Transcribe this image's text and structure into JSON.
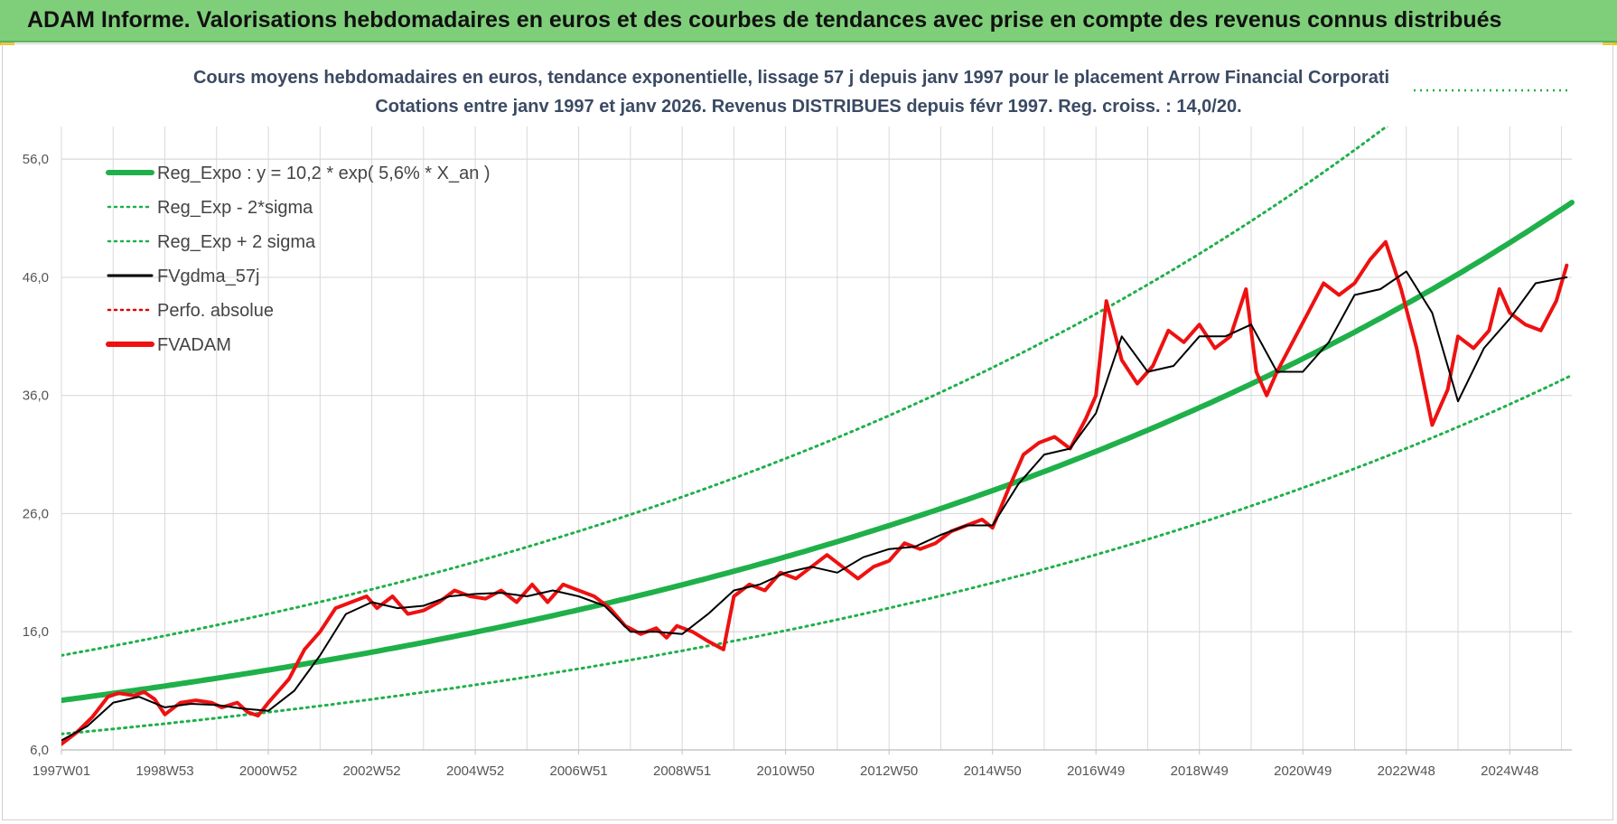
{
  "header": {
    "banner_title": "ADAM Informe. Valorisations hebdomadaires en euros et des courbes de tendances avec prise en compte des revenus connus distribués"
  },
  "colors": {
    "banner": "#7fcf7a",
    "reg_expo": "#1fb04a",
    "sigma": "#1fb04a",
    "fvgdma": "#000000",
    "perfo": "#e00000",
    "fvadam": "#ee1111",
    "grid": "#d9d9d9"
  },
  "chart_data": {
    "type": "line",
    "title": "Cours moyens hebdomadaires en euros, tendance exponentielle, lissage 57 j depuis janv 1997 pour le placement Arrow Financial Corporati",
    "subtitle": "Cotations entre janv 1997 et janv 2026. Revenus DISTRIBUES depuis févr 1997. Reg. croiss. : 14,0/20.",
    "xlabel": "",
    "ylabel": "",
    "ylim": [
      6,
      58
    ],
    "xlim": [
      1997.0,
      2026.2
    ],
    "y_ticks": [
      6,
      16,
      26,
      36,
      46,
      56
    ],
    "y_tick_labels": [
      "6,0",
      "16,0",
      "26,0",
      "36,0",
      "46,0",
      "56,0"
    ],
    "x_ticks": [
      1997.0,
      1999.0,
      2001.0,
      2003.0,
      2005.0,
      2007.0,
      2009.0,
      2011.0,
      2013.0,
      2015.0,
      2017.0,
      2019.0,
      2021.0,
      2023.0,
      2025.0
    ],
    "x_tick_labels": [
      "1997W01",
      "1998W53",
      "2000W52",
      "2002W52",
      "2004W52",
      "2006W51",
      "2008W51",
      "2010W50",
      "2012W50",
      "2014W50",
      "2016W49",
      "2018W49",
      "2020W49",
      "2022W48",
      "2024W48"
    ],
    "grid": true,
    "legend_position": "top-left",
    "legend": [
      {
        "label": "Reg_Expo : y = 10,2 * exp( 5,6% *  X_an )",
        "style": "solid-thick",
        "color": "#1fb04a"
      },
      {
        "label": "Reg_Exp - 2*sigma",
        "style": "dotted",
        "color": "#1fb04a"
      },
      {
        "label": "Reg_Exp + 2 sigma",
        "style": "dotted",
        "color": "#1fb04a"
      },
      {
        "label": "FVgdma_57j",
        "style": "solid",
        "color": "#000000"
      },
      {
        "label": "Perfo. absolue",
        "style": "dotted",
        "color": "#e00000"
      },
      {
        "label": "FVADAM",
        "style": "solid-thick",
        "color": "#ee1111"
      }
    ],
    "series": [
      {
        "name": "Reg_Expo : y = 10,2 * exp( 5,6% *  X_an )",
        "kind": "exp",
        "a": 10.2,
        "b": 0.056,
        "x0": 1997.0
      },
      {
        "name": "Reg_Exp - 2*sigma",
        "kind": "exp",
        "a": 7.35,
        "b": 0.056,
        "x0": 1997.0
      },
      {
        "name": "Reg_Exp + 2 sigma",
        "kind": "exp",
        "a": 14.0,
        "b": 0.056,
        "x0": 1997.0
      },
      {
        "name": "FVADAM",
        "x": [
          1997.0,
          1997.3,
          1997.6,
          1997.9,
          1998.1,
          1998.4,
          1998.6,
          1998.8,
          1999.0,
          1999.3,
          1999.6,
          1999.9,
          2000.1,
          2000.4,
          2000.6,
          2000.8,
          2001.0,
          2001.2,
          2001.4,
          2001.7,
          2002.0,
          2002.3,
          2002.6,
          2002.9,
          2003.1,
          2003.4,
          2003.7,
          2004.0,
          2004.3,
          2004.6,
          2004.9,
          2005.2,
          2005.5,
          2005.8,
          2006.1,
          2006.4,
          2006.7,
          2007.0,
          2007.3,
          2007.6,
          2007.9,
          2008.2,
          2008.5,
          2008.7,
          2008.9,
          2009.2,
          2009.5,
          2009.8,
          2010.0,
          2010.3,
          2010.6,
          2010.9,
          2011.2,
          2011.5,
          2011.8,
          2012.1,
          2012.4,
          2012.7,
          2013.0,
          2013.3,
          2013.6,
          2013.9,
          2014.2,
          2014.5,
          2014.8,
          2015.0,
          2015.3,
          2015.6,
          2015.9,
          2016.2,
          2016.5,
          2016.8,
          2017.0,
          2017.2,
          2017.5,
          2017.8,
          2018.1,
          2018.4,
          2018.7,
          2019.0,
          2019.3,
          2019.6,
          2019.9,
          2020.1,
          2020.3,
          2020.5,
          2020.8,
          2021.1,
          2021.4,
          2021.7,
          2022.0,
          2022.3,
          2022.6,
          2022.9,
          2023.2,
          2023.5,
          2023.8,
          2024.0,
          2024.3,
          2024.6,
          2024.8,
          2025.0,
          2025.3,
          2025.6,
          2025.9,
          2026.1
        ],
        "y": [
          6.5,
          7.5,
          8.8,
          10.5,
          10.8,
          10.6,
          10.9,
          10.3,
          9.0,
          10.0,
          10.2,
          10.0,
          9.6,
          10.0,
          9.2,
          8.9,
          10.0,
          11.0,
          12.0,
          14.5,
          16.0,
          18.0,
          18.5,
          19.0,
          18.0,
          19.0,
          17.5,
          17.8,
          18.5,
          19.5,
          19.0,
          18.8,
          19.5,
          18.5,
          20.0,
          18.5,
          20.0,
          19.5,
          19.0,
          18.0,
          16.5,
          15.8,
          16.3,
          15.5,
          16.5,
          16.0,
          15.2,
          14.5,
          19.0,
          20.0,
          19.5,
          21.0,
          20.5,
          21.5,
          22.5,
          21.5,
          20.5,
          21.5,
          22.0,
          23.5,
          23.0,
          23.5,
          24.5,
          25.0,
          25.5,
          24.8,
          28.0,
          31.0,
          32.0,
          32.5,
          31.5,
          34.0,
          36.0,
          44.0,
          39.0,
          37.0,
          38.5,
          41.5,
          40.5,
          42.0,
          40.0,
          41.0,
          45.0,
          38.0,
          36.0,
          38.0,
          40.5,
          43.0,
          45.5,
          44.5,
          45.5,
          47.5,
          49.0,
          45.0,
          40.0,
          33.5,
          36.5,
          41.0,
          40.0,
          41.5,
          45.0,
          43.0,
          42.0,
          41.5,
          44.0,
          47.0
        ]
      },
      {
        "name": "FVgdma_57j",
        "x": [
          1997.0,
          1997.5,
          1998.0,
          1998.5,
          1999.0,
          1999.5,
          2000.0,
          2000.5,
          2001.0,
          2001.5,
          2002.0,
          2002.5,
          2003.0,
          2003.5,
          2004.0,
          2004.5,
          2005.0,
          2005.5,
          2006.0,
          2006.5,
          2007.0,
          2007.5,
          2008.0,
          2008.5,
          2009.0,
          2009.5,
          2010.0,
          2010.5,
          2011.0,
          2011.5,
          2012.0,
          2012.5,
          2013.0,
          2013.5,
          2014.0,
          2014.5,
          2015.0,
          2015.5,
          2016.0,
          2016.5,
          2017.0,
          2017.5,
          2018.0,
          2018.5,
          2019.0,
          2019.5,
          2020.0,
          2020.5,
          2021.0,
          2021.5,
          2022.0,
          2022.5,
          2023.0,
          2023.5,
          2024.0,
          2024.5,
          2025.0,
          2025.5,
          2026.1
        ],
        "y": [
          6.8,
          8.0,
          10.0,
          10.5,
          9.6,
          9.9,
          9.8,
          9.5,
          9.3,
          11.0,
          14.0,
          17.5,
          18.5,
          18.0,
          18.2,
          19.0,
          19.2,
          19.3,
          19.0,
          19.5,
          19.0,
          18.2,
          16.0,
          16.0,
          15.8,
          17.5,
          19.5,
          20.0,
          21.0,
          21.5,
          21.0,
          22.3,
          23.0,
          23.2,
          24.2,
          25.0,
          25.0,
          28.5,
          31.0,
          31.5,
          34.5,
          41.0,
          38.0,
          38.5,
          41.0,
          41.0,
          42.0,
          38.0,
          38.0,
          40.5,
          44.5,
          45.0,
          46.5,
          43.0,
          35.5,
          40.0,
          42.5,
          45.5,
          46.0
        ]
      }
    ]
  }
}
